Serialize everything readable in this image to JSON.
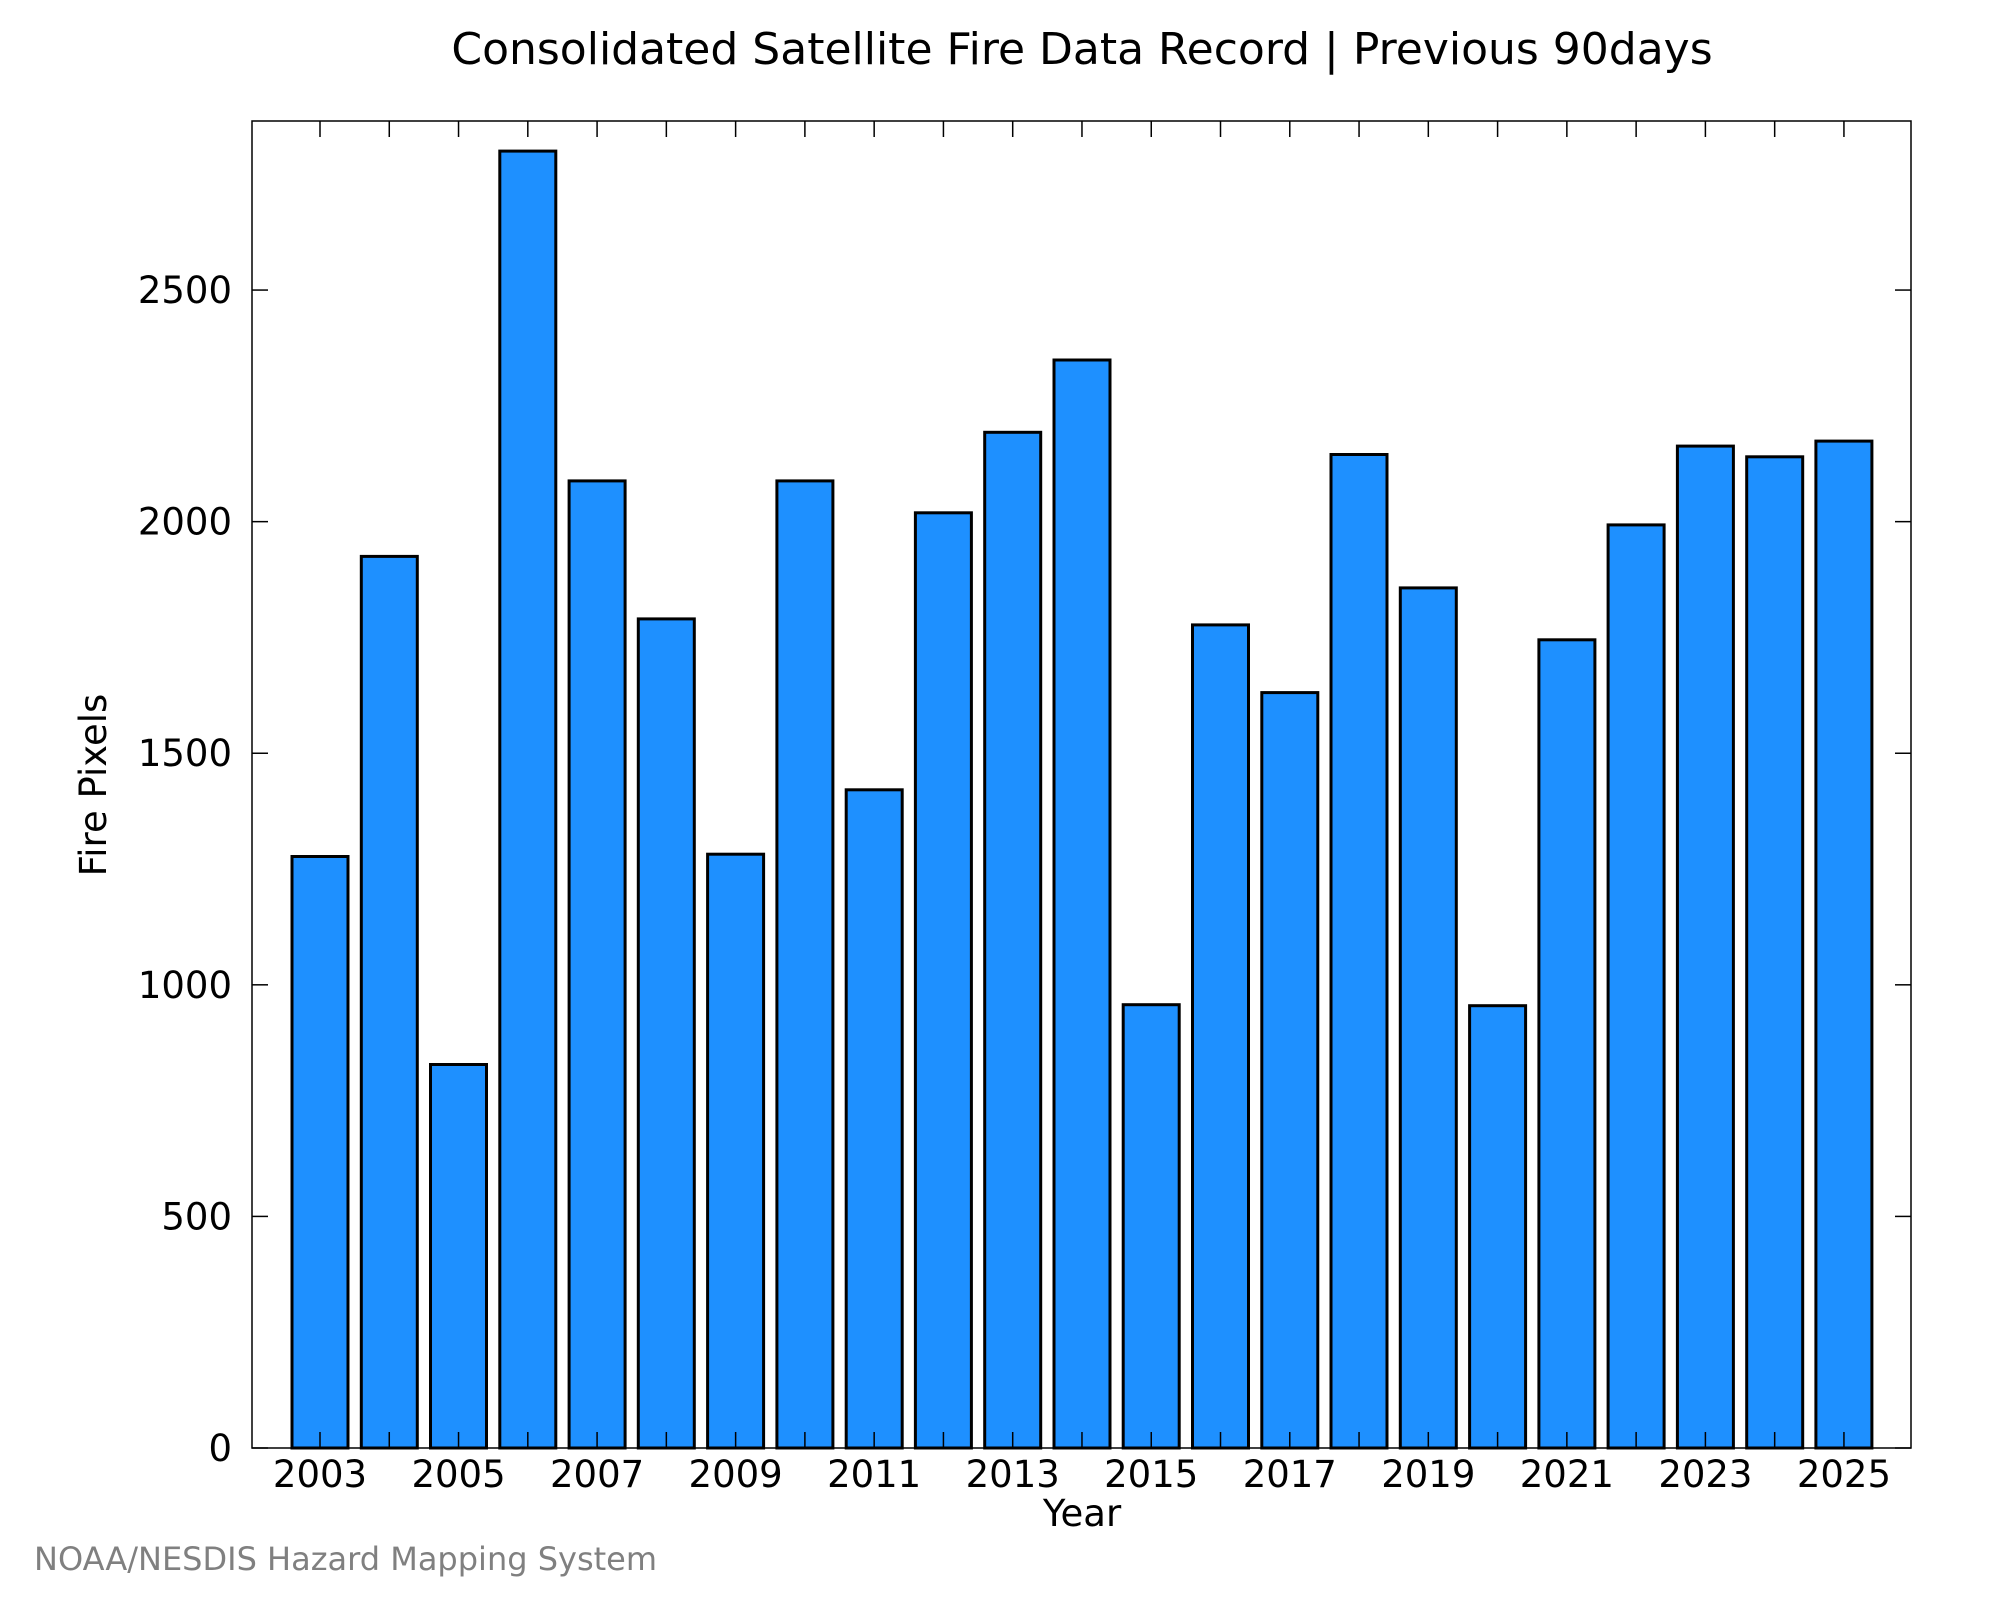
{
  "chart_data": {
    "type": "bar",
    "title": "Consolidated Satellite Fire Data Record | Previous 90days",
    "xlabel": "Year",
    "ylabel": "Fire Pixels",
    "categories": [
      "2003",
      "2004",
      "2005",
      "2006",
      "2007",
      "2008",
      "2009",
      "2010",
      "2011",
      "2012",
      "2013",
      "2014",
      "2015",
      "2016",
      "2017",
      "2018",
      "2019",
      "2020",
      "2021",
      "2022",
      "2023",
      "2024",
      "2025"
    ],
    "values": [
      1277,
      1925,
      828,
      2800,
      2088,
      1790,
      1282,
      2088,
      1421,
      2019,
      2193,
      2349,
      957,
      1777,
      1631,
      2145,
      1857,
      955,
      1745,
      1993,
      2163,
      2140,
      2174
    ],
    "xticks": [
      "2003",
      "2005",
      "2007",
      "2009",
      "2011",
      "2013",
      "2015",
      "2017",
      "2019",
      "2021",
      "2023",
      "2025"
    ],
    "yticks": [
      0,
      500,
      1000,
      1500,
      2000,
      2500
    ],
    "ylim": [
      0,
      2865
    ],
    "grid": false,
    "bar_color": "#1E90FF",
    "bar_edge_color": "#000000"
  },
  "credit": "NOAA/NESDIS Hazard Mapping System"
}
